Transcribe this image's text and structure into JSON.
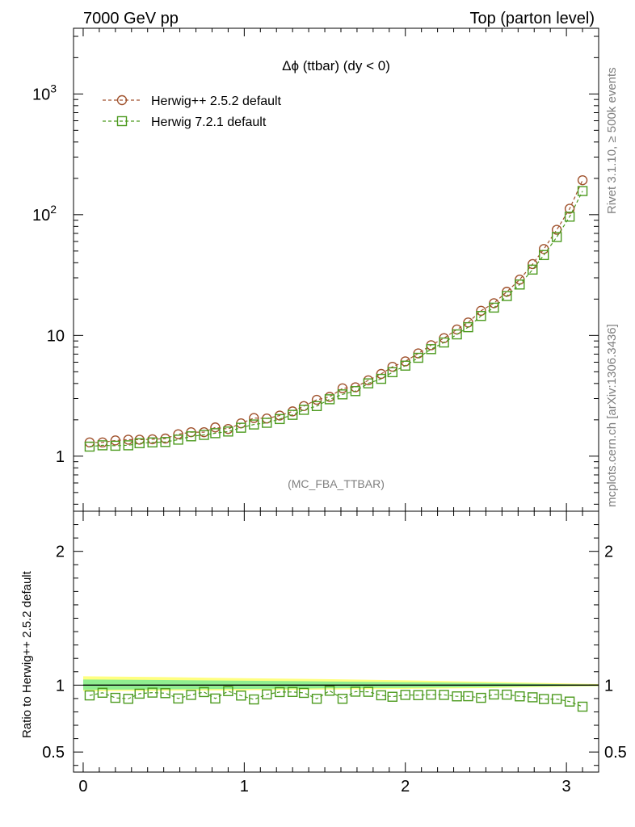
{
  "header": {
    "left": "7000 GeV pp",
    "right": "Top (parton level)"
  },
  "side_labels": {
    "rivet": "Rivet 3.1.10, ≥ 500k events",
    "mcplots": "mcplots.cern.ch [arXiv:1306.3436]"
  },
  "watermark": "(MC_FBA_TTBAR)",
  "ratio_ylabel": "Ratio to Herwig++ 2.5.2 default",
  "colors": {
    "herwigpp": "#a0522d",
    "herwig7": "#4c9a1e",
    "band_inner": "#90ee90",
    "band_outer": "#ffff80"
  },
  "chart_data": [
    {
      "type": "scatter",
      "title": "Δϕ (ttbar) (dy < 0)",
      "yscale": "log",
      "xlim": [
        -0.06,
        3.2
      ],
      "ylim": [
        0.35,
        3500
      ],
      "y_ticks": [
        {
          "v": 1,
          "label": "1"
        },
        {
          "v": 10,
          "label": "10"
        },
        {
          "v": 100,
          "label": "10",
          "sup": "2"
        },
        {
          "v": 1000,
          "label": "10",
          "sup": "3"
        }
      ],
      "legend_position": "top-left",
      "x": [
        0.04,
        0.12,
        0.2,
        0.28,
        0.35,
        0.43,
        0.51,
        0.59,
        0.67,
        0.75,
        0.82,
        0.9,
        0.98,
        1.06,
        1.14,
        1.22,
        1.3,
        1.37,
        1.45,
        1.53,
        1.61,
        1.69,
        1.77,
        1.85,
        1.92,
        2.0,
        2.08,
        2.16,
        2.24,
        2.32,
        2.39,
        2.47,
        2.55,
        2.63,
        2.71,
        2.79,
        2.86,
        2.94,
        3.02,
        3.1
      ],
      "series": [
        {
          "name": "Herwig++ 2.5.2 default",
          "marker": "circle",
          "values": [
            1.3,
            1.3,
            1.35,
            1.37,
            1.37,
            1.38,
            1.4,
            1.52,
            1.58,
            1.58,
            1.73,
            1.68,
            1.87,
            2.07,
            2.05,
            2.17,
            2.35,
            2.6,
            2.93,
            3.1,
            3.65,
            3.72,
            4.25,
            4.8,
            5.5,
            6.1,
            7.1,
            8.3,
            9.5,
            11.2,
            12.8,
            16.0,
            18.5,
            23.0,
            29.0,
            39.0,
            52.0,
            75.0,
            112,
            193
          ]
        },
        {
          "name": "Herwig 7.2.1 default",
          "marker": "square",
          "values": [
            1.2,
            1.23,
            1.22,
            1.23,
            1.28,
            1.3,
            1.31,
            1.37,
            1.46,
            1.5,
            1.55,
            1.6,
            1.72,
            1.83,
            1.89,
            2.03,
            2.2,
            2.42,
            2.6,
            2.96,
            3.25,
            3.46,
            4.01,
            4.37,
            4.96,
            5.62,
            6.53,
            7.7,
            8.74,
            10.2,
            11.7,
            14.5,
            17.0,
            21.2,
            26.4,
            35.1,
            46.3,
            65.3,
            96.3,
            157
          ]
        }
      ]
    },
    {
      "type": "scatter",
      "xlim": [
        -0.06,
        3.2
      ],
      "ylim": [
        0.35,
        2.3
      ],
      "x_ticks": [
        0,
        1,
        2,
        3
      ],
      "y_ticks": [
        0.5,
        1,
        2
      ],
      "reference_line": 1.0,
      "band_outer": {
        "x": [
          0.0,
          0.5,
          1.0,
          1.5,
          2.0,
          2.5,
          3.0,
          3.2
        ],
        "lo": [
          0.955,
          0.958,
          0.962,
          0.967,
          0.972,
          0.978,
          0.988,
          0.992
        ],
        "hi": [
          1.066,
          1.06,
          1.052,
          1.045,
          1.036,
          1.025,
          1.012,
          1.008
        ]
      },
      "band_inner": {
        "x": [
          0.0,
          0.5,
          1.0,
          1.5,
          2.0,
          2.5,
          3.0,
          3.2
        ],
        "lo": [
          0.965,
          0.968,
          0.972,
          0.976,
          0.98,
          0.986,
          0.993,
          0.995
        ],
        "hi": [
          1.042,
          1.038,
          1.033,
          1.028,
          1.022,
          1.015,
          1.007,
          1.005
        ]
      },
      "series": [
        {
          "name": "Herwig 7.2.1 default",
          "marker": "square",
          "values": [
            0.923,
            0.943,
            0.905,
            0.898,
            0.936,
            0.944,
            0.94,
            0.9,
            0.927,
            0.948,
            0.9,
            0.955,
            0.922,
            0.893,
            0.931,
            0.948,
            0.949,
            0.942,
            0.898,
            0.958,
            0.898,
            0.951,
            0.95,
            0.924,
            0.913,
            0.927,
            0.925,
            0.929,
            0.927,
            0.916,
            0.917,
            0.905,
            0.93,
            0.929,
            0.916,
            0.909,
            0.896,
            0.896,
            0.877,
            0.839
          ]
        }
      ]
    }
  ]
}
